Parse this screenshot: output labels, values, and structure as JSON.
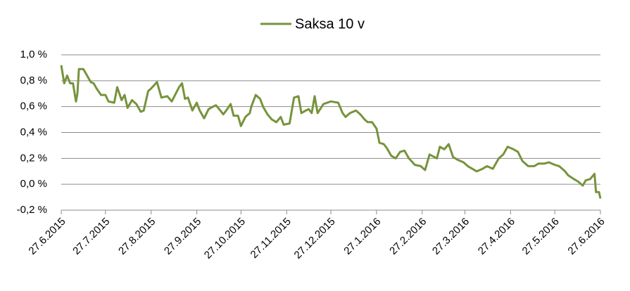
{
  "chart_data": {
    "type": "line",
    "grid": true,
    "legend": "top",
    "xlim": [
      "27.6.2015",
      "27.6.2016"
    ],
    "xticks": [
      "27.6.2015",
      "27.7.2015",
      "27.8.2015",
      "27.9.2015",
      "27.10.2015",
      "27.11.2015",
      "27.12.2015",
      "27.1.2016",
      "27.2.2016",
      "27.3.2016",
      "27.4.2016",
      "27.5.2016",
      "27.6.2016"
    ],
    "ylim": [
      -0.2,
      1.0
    ],
    "yticks": [
      {
        "value": -0.2,
        "label": "-0,2 %"
      },
      {
        "value": 0,
        "label": "0,0 %"
      },
      {
        "value": 0.2,
        "label": "0,2 %"
      },
      {
        "value": 0.4,
        "label": "0,4 %"
      },
      {
        "value": 0.6,
        "label": "0,6 %"
      },
      {
        "value": 0.8,
        "label": "0,8 %"
      },
      {
        "value": 1.0,
        "label": "1,0 %"
      }
    ],
    "x": [
      "27.6.2015",
      "29.6.2015",
      "1.7.2015",
      "3.7.2015",
      "5.7.2015",
      "7.7.2015",
      "8.7.2015",
      "9.7.2015",
      "12.7.2015",
      "15.7.2015",
      "17.7.2015",
      "19.7.2015",
      "21.7.2015",
      "24.7.2015",
      "27.7.2015",
      "29.7.2015",
      "2.8.2015",
      "4.8.2015",
      "7.8.2015",
      "9.8.2015",
      "11.8.2015",
      "14.8.2015",
      "17.8.2015",
      "20.8.2015",
      "22.8.2015",
      "25.8.2015",
      "27.8.2015",
      "31.8.2015",
      "3.9.2015",
      "7.9.2015",
      "10.9.2015",
      "15.9.2015",
      "17.9.2015",
      "19.9.2015",
      "21.9.2015",
      "24.9.2015",
      "27.9.2015",
      "29.9.2015",
      "2.10.2015",
      "5.10.2015",
      "8.10.2015",
      "10.10.2015",
      "13.10.2015",
      "15.10.2015",
      "17.10.2015",
      "20.10.2015",
      "22.10.2015",
      "25.10.2015",
      "27.10.2015",
      "30.10.2015",
      "2.11.2015",
      "3.11.2015",
      "6.11.2015",
      "9.11.2015",
      "11.11.2015",
      "14.11.2015",
      "17.11.2015",
      "20.11.2015",
      "23.11.2015",
      "25.11.2015",
      "29.11.2015",
      "2.12.2015",
      "5.12.2015",
      "7.12.2015",
      "10.12.2015",
      "12.12.2015",
      "14.12.2015",
      "16.12.2015",
      "18.12.2015",
      "22.12.2015",
      "27.12.2015",
      "1.1.2016",
      "4.1.2016",
      "6.1.2016",
      "9.1.2016",
      "13.1.2016",
      "16.1.2016",
      "19.1.2016",
      "21.1.2016",
      "24.1.2016",
      "27.1.2016",
      "29.1.2016",
      "1.2.2016",
      "3.2.2016",
      "6.2.2016",
      "9.2.2016",
      "12.2.2016",
      "15.2.2016",
      "18.2.2016",
      "22.2.2016",
      "26.2.2016",
      "29.2.2016",
      "3.3.2016",
      "8.3.2016",
      "10.3.2016",
      "13.3.2016",
      "16.3.2016",
      "19.3.2016",
      "22.3.2016",
      "26.3.2016",
      "29.3.2016",
      "1.4.2016",
      "4.4.2016",
      "8.4.2016",
      "11.4.2016",
      "15.4.2016",
      "19.4.2016",
      "22.4.2016",
      "25.4.2016",
      "29.4.2016",
      "2.5.2016",
      "5.5.2016",
      "9.5.2016",
      "13.5.2016",
      "16.5.2016",
      "20.5.2016",
      "23.5.2016",
      "27.5.2016",
      "30.5.2016",
      "3.6.2016",
      "5.6.2016",
      "9.6.2016",
      "12.6.2016",
      "15.6.2016",
      "17.6.2016",
      "20.6.2016",
      "23.6.2016",
      "24.6.2016",
      "26.6.2016",
      "27.6.2016"
    ],
    "series": [
      {
        "name": "Saksa 10 v",
        "color": "#77933c",
        "values": [
          0.92,
          0.78,
          0.84,
          0.78,
          0.78,
          0.64,
          0.7,
          0.89,
          0.89,
          0.83,
          0.79,
          0.78,
          0.74,
          0.69,
          0.69,
          0.64,
          0.63,
          0.75,
          0.65,
          0.69,
          0.59,
          0.65,
          0.62,
          0.56,
          0.57,
          0.72,
          0.74,
          0.79,
          0.67,
          0.68,
          0.64,
          0.75,
          0.78,
          0.66,
          0.67,
          0.57,
          0.63,
          0.57,
          0.51,
          0.58,
          0.6,
          0.61,
          0.57,
          0.54,
          0.57,
          0.62,
          0.53,
          0.53,
          0.45,
          0.52,
          0.55,
          0.6,
          0.69,
          0.66,
          0.6,
          0.54,
          0.5,
          0.48,
          0.52,
          0.46,
          0.47,
          0.67,
          0.68,
          0.55,
          0.57,
          0.58,
          0.55,
          0.68,
          0.55,
          0.62,
          0.64,
          0.63,
          0.55,
          0.52,
          0.55,
          0.57,
          0.54,
          0.5,
          0.48,
          0.48,
          0.43,
          0.32,
          0.31,
          0.28,
          0.22,
          0.2,
          0.25,
          0.26,
          0.2,
          0.15,
          0.14,
          0.11,
          0.23,
          0.2,
          0.29,
          0.27,
          0.31,
          0.21,
          0.19,
          0.17,
          0.14,
          0.12,
          0.1,
          0.12,
          0.14,
          0.12,
          0.2,
          0.23,
          0.29,
          0.27,
          0.25,
          0.18,
          0.14,
          0.14,
          0.16,
          0.16,
          0.17,
          0.15,
          0.14,
          0.1,
          0.07,
          0.04,
          0.02,
          -0.01,
          0.03,
          0.04,
          0.08,
          -0.06,
          -0.06,
          -0.11
        ]
      }
    ]
  }
}
